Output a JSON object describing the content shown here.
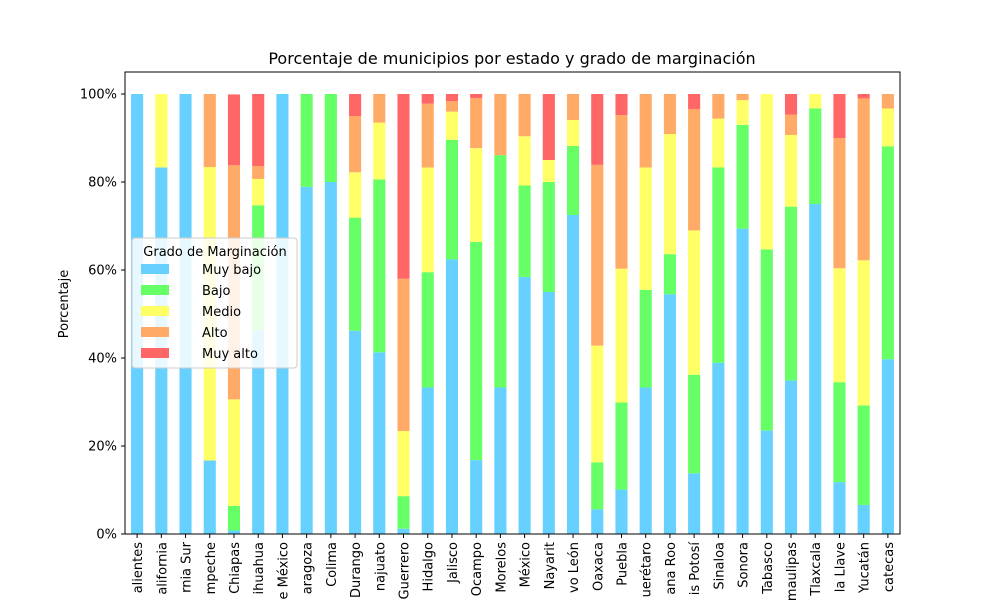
{
  "chart_data": {
    "type": "bar",
    "stacked": true,
    "title": "Porcentaje de municipios por estado y grado de marginación",
    "xlabel": "",
    "ylabel": "Porcentaje",
    "ylim": [
      0,
      105
    ],
    "yticks": [
      0,
      20,
      40,
      60,
      80,
      100
    ],
    "ytick_format": "{v}%",
    "legend": {
      "title": "Grado de Marginación",
      "placement": "center-left"
    },
    "categories": [
      "Aguascalientes",
      "Baja California",
      "Baja California Sur",
      "Campeche",
      "Chiapas",
      "Chihuahua",
      "Ciudad de México",
      "Coahuila de Zaragoza",
      "Colima",
      "Durango",
      "Guanajuato",
      "Guerrero",
      "Hidalgo",
      "Jalisco",
      "Michoacán de Ocampo",
      "Morelos",
      "México",
      "Nayarit",
      "Nuevo León",
      "Oaxaca",
      "Puebla",
      "Querétaro",
      "Quintana Roo",
      "San Luis Potosí",
      "Sinaloa",
      "Sonora",
      "Tabasco",
      "Tamaulipas",
      "Tlaxcala",
      "Veracruz de Ignacio de la Llave",
      "Yucatán",
      "Zacatecas"
    ],
    "tick_labels": [
      "alientes",
      "alifornia",
      "rnia Sur",
      "mpeche",
      "Chiapas",
      "ihuahua",
      "e México",
      "aragoza",
      "Colima",
      "Durango",
      "najuato",
      "Guerrero",
      "Hidalgo",
      "Jalisco",
      "Ocampo",
      "Morelos",
      "México",
      "Nayarit",
      "vo León",
      "Oaxaca",
      "Puebla",
      "uerétaro",
      "ana Roo",
      "is Potosí",
      "Sinaloa",
      "Sonora",
      "Tabasco",
      "maulipas",
      "Tlaxcala",
      "la Llave",
      "Yucatán",
      "catecas"
    ],
    "series": [
      {
        "name": "Muy bajo",
        "color": "#66d1ff",
        "values": [
          100,
          83.3,
          100,
          16.7,
          0.8,
          46.3,
          100,
          78.9,
          80,
          46.2,
          41.3,
          1.2,
          33.3,
          62.4,
          16.8,
          33.3,
          58.4,
          55,
          72.5,
          5.6,
          10.1,
          33.3,
          54.5,
          13.8,
          38.9,
          69.4,
          23.5,
          34.9,
          75,
          11.8,
          6.6,
          39.7
        ]
      },
      {
        "name": "Bajo",
        "color": "#66ff66",
        "values": [
          0,
          0,
          0,
          0,
          5.6,
          28.4,
          0,
          21.1,
          20,
          25.7,
          39.3,
          7.4,
          26.2,
          27.2,
          49.6,
          52.8,
          20.8,
          25,
          15.7,
          10.7,
          19.8,
          22.2,
          9.1,
          22.4,
          44.4,
          23.6,
          41.2,
          39.5,
          21.7,
          22.7,
          22.6,
          48.4
        ]
      },
      {
        "name": "Medio",
        "color": "#ffff66",
        "values": [
          0,
          16.7,
          0,
          66.7,
          24.2,
          6.0,
          0,
          0,
          0,
          10.3,
          12.9,
          14.8,
          23.8,
          6.4,
          21.3,
          0,
          11.2,
          5,
          5.9,
          26.5,
          30.4,
          27.8,
          27.3,
          32.8,
          11.1,
          5.6,
          35.3,
          16.3,
          3.3,
          25.9,
          33.0,
          8.6
        ]
      },
      {
        "name": "Alto",
        "color": "#ffaa66",
        "values": [
          0,
          0,
          0,
          16.6,
          53.2,
          2.9,
          0,
          0,
          0,
          12.8,
          6.5,
          34.6,
          14.5,
          2.4,
          11.4,
          13.9,
          9.6,
          0,
          5.9,
          41.1,
          34.9,
          16.7,
          9.1,
          27.6,
          5.6,
          1.4,
          0,
          4.6,
          0,
          29.6,
          36.8,
          3.3
        ]
      },
      {
        "name": "Muy alto",
        "color": "#ff6666",
        "values": [
          0,
          0,
          0,
          0,
          16.1,
          16.4,
          0,
          0,
          0,
          5.0,
          0,
          42.0,
          2.2,
          1.6,
          0.9,
          0,
          0,
          15,
          0,
          16.1,
          4.8,
          0,
          0,
          3.4,
          0,
          0,
          0,
          4.7,
          0,
          10.0,
          1.0,
          0
        ]
      }
    ]
  }
}
